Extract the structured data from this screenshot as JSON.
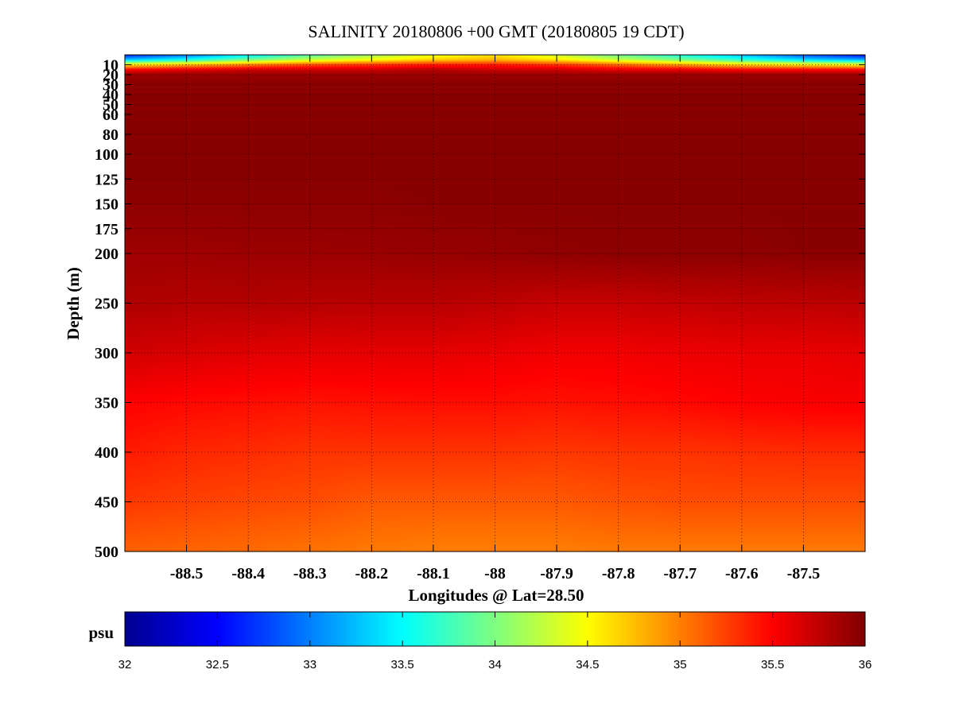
{
  "chart_data": {
    "type": "heatmap",
    "title": "SALINITY 20180806 +00 GMT (20180805 19 CDT)",
    "xlabel": "Longitudes @ Lat=28.50",
    "ylabel": "Depth (m)",
    "xlim": [
      -88.6,
      -87.4
    ],
    "ylim": [
      500,
      0
    ],
    "y_reversed": true,
    "grid": true,
    "x_ticks": [
      -88.5,
      -88.4,
      -88.3,
      -88.2,
      -88.1,
      -88,
      -87.9,
      -87.8,
      -87.7,
      -87.6,
      -87.5
    ],
    "x_tick_labels": [
      "-88.5",
      "-88.4",
      "-88.3",
      "-88.2",
      "-88.1",
      "-88",
      "-87.9",
      "-87.8",
      "-87.7",
      "-87.6",
      "-87.5"
    ],
    "y_ticks": [
      10,
      20,
      30,
      40,
      50,
      60,
      80,
      100,
      125,
      150,
      175,
      200,
      250,
      300,
      350,
      400,
      450,
      500
    ],
    "y_tick_labels": [
      "10",
      "20",
      "30",
      "40",
      "50",
      "60",
      "80",
      "100",
      "125",
      "150",
      "175",
      "200",
      "250",
      "300",
      "350",
      "400",
      "450",
      "500"
    ],
    "colorbar": {
      "label": "psu",
      "range": [
        32,
        36
      ],
      "ticks": [
        32,
        32.5,
        33,
        33.5,
        34,
        34.5,
        35,
        35.5,
        36
      ],
      "tick_labels": [
        "32",
        "32.5",
        "33",
        "33.5",
        "34",
        "34.5",
        "35",
        "35.5",
        "36"
      ],
      "colormap": "jet",
      "colors": [
        "#00008f",
        "#0000ff",
        "#00ffff",
        "#ffff00",
        "#ff0000",
        "#800000"
      ]
    },
    "longitudes": [
      -88.6,
      -88.5,
      -88.4,
      -88.3,
      -88.2,
      -88.1,
      -88.0,
      -87.9,
      -87.8,
      -87.7,
      -87.6,
      -87.5,
      -87.4
    ],
    "depths": [
      0,
      5,
      10,
      15,
      20,
      30,
      50,
      100,
      150,
      200,
      250,
      300,
      350,
      400,
      450,
      500
    ],
    "values": [
      [
        32.6,
        32.9,
        33.4,
        33.8,
        34.1,
        34.4,
        34.6,
        34.3,
        33.9,
        33.6,
        33.2,
        32.8,
        32.5
      ],
      [
        33.3,
        33.6,
        34.0,
        34.3,
        34.5,
        34.7,
        34.8,
        34.6,
        34.3,
        34.0,
        33.7,
        33.4,
        33.2
      ],
      [
        34.6,
        34.8,
        35.0,
        35.2,
        35.3,
        35.4,
        35.4,
        35.3,
        35.1,
        34.9,
        34.7,
        34.6,
        34.5
      ],
      [
        35.5,
        35.6,
        35.7,
        35.7,
        35.7,
        35.8,
        35.7,
        35.7,
        35.6,
        35.6,
        35.5,
        35.5,
        35.5
      ],
      [
        35.9,
        35.9,
        35.9,
        35.9,
        35.9,
        35.9,
        35.9,
        35.9,
        35.9,
        35.9,
        35.9,
        35.9,
        35.9
      ],
      [
        35.95,
        35.95,
        35.95,
        35.95,
        35.95,
        35.95,
        35.95,
        35.95,
        35.95,
        35.95,
        35.95,
        35.95,
        35.95
      ],
      [
        35.97,
        35.97,
        35.97,
        35.97,
        35.97,
        35.97,
        35.97,
        35.97,
        35.97,
        35.97,
        35.97,
        35.97,
        35.97
      ],
      [
        35.97,
        35.97,
        35.97,
        35.97,
        35.97,
        35.97,
        35.97,
        35.97,
        35.97,
        35.97,
        35.97,
        35.97,
        35.97
      ],
      [
        35.95,
        35.95,
        35.95,
        35.95,
        35.95,
        35.96,
        35.96,
        35.96,
        35.96,
        35.96,
        35.96,
        35.96,
        35.96
      ],
      [
        35.88,
        35.88,
        35.89,
        35.89,
        35.9,
        35.91,
        35.92,
        35.94,
        35.95,
        35.95,
        35.95,
        35.96,
        35.96
      ],
      [
        35.82,
        35.8,
        35.8,
        35.79,
        35.78,
        35.78,
        35.76,
        35.72,
        35.72,
        35.74,
        35.75,
        35.76,
        35.77
      ],
      [
        35.68,
        35.65,
        35.62,
        35.6,
        35.6,
        35.6,
        35.58,
        35.55,
        35.55,
        35.57,
        35.58,
        35.58,
        35.6
      ],
      [
        35.5,
        35.47,
        35.45,
        35.43,
        35.44,
        35.45,
        35.45,
        35.43,
        35.45,
        35.47,
        35.5,
        35.52,
        35.53
      ],
      [
        35.4,
        35.35,
        35.33,
        35.3,
        35.3,
        35.3,
        35.3,
        35.28,
        35.3,
        35.3,
        35.32,
        35.33,
        35.33
      ],
      [
        35.28,
        35.25,
        35.22,
        35.2,
        35.15,
        35.15,
        35.15,
        35.15,
        35.18,
        35.2,
        35.2,
        35.2,
        35.2
      ],
      [
        35.12,
        35.1,
        35.08,
        35.05,
        35.02,
        35.0,
        35.0,
        35.0,
        35.02,
        35.02,
        35.02,
        35.02,
        35.02
      ]
    ]
  }
}
